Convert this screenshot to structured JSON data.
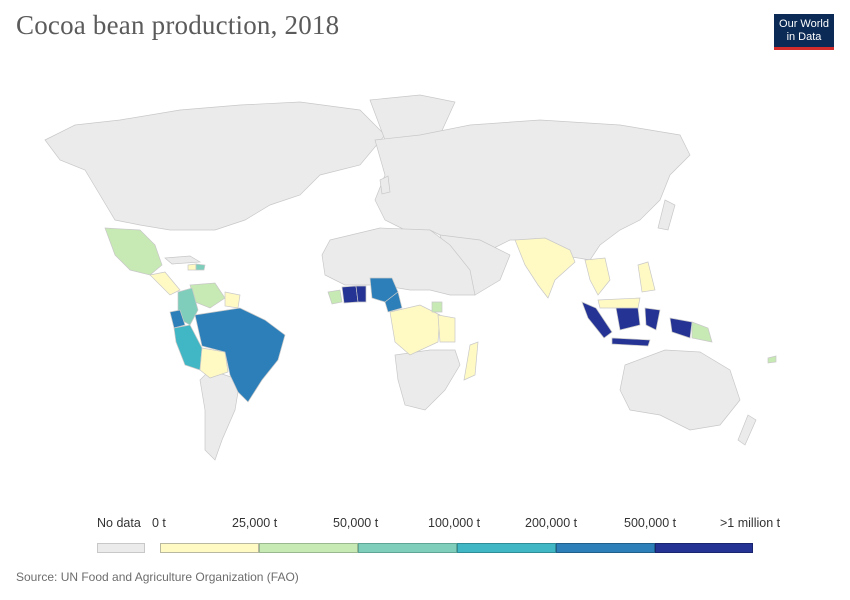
{
  "title": "Cocoa bean production, 2018",
  "logo": {
    "line1": "Our World",
    "line2": "in Data"
  },
  "source": "Source: UN Food and Agriculture Organization (FAO)",
  "colors": {
    "no_data": "#ebebeb",
    "land_stroke": "#c8c8c8",
    "bins": [
      "#fff9c4",
      "#c7e9b4",
      "#7fcdbb",
      "#41b6c4",
      "#2c7fb8",
      "#253494"
    ]
  },
  "legend": {
    "no_data_label": "No data",
    "ticks": [
      "0 t",
      "25,000 t",
      "50,000 t",
      "100,000 t",
      "200,000 t",
      "500,000 t",
      ">1 million t"
    ]
  },
  "map_data": {
    "unit": "tonnes",
    "countries": [
      {
        "name": "Côte d'Ivoire",
        "bin": 6
      },
      {
        "name": "Ghana",
        "bin": 6
      },
      {
        "name": "Indonesia",
        "bin": 6
      },
      {
        "name": "Nigeria",
        "bin": 5
      },
      {
        "name": "Cameroon",
        "bin": 5
      },
      {
        "name": "Brazil",
        "bin": 5
      },
      {
        "name": "Ecuador",
        "bin": 5
      },
      {
        "name": "Peru",
        "bin": 4
      },
      {
        "name": "Colombia",
        "bin": 3
      },
      {
        "name": "Dominican Republic",
        "bin": 3
      },
      {
        "name": "Papua New Guinea",
        "bin": 2
      },
      {
        "name": "Mexico",
        "bin": 2
      },
      {
        "name": "Venezuela",
        "bin": 2
      },
      {
        "name": "Uganda",
        "bin": 2
      },
      {
        "name": "Sierra Leone",
        "bin": 2
      },
      {
        "name": "India",
        "bin": 1
      },
      {
        "name": "Bolivia",
        "bin": 1
      },
      {
        "name": "Madagascar",
        "bin": 1
      },
      {
        "name": "Tanzania",
        "bin": 1
      },
      {
        "name": "DR Congo",
        "bin": 1
      },
      {
        "name": "Philippines",
        "bin": 1
      },
      {
        "name": "Malaysia",
        "bin": 1
      },
      {
        "name": "Vietnam",
        "bin": 1
      },
      {
        "name": "Guatemala",
        "bin": 1
      },
      {
        "name": "Haiti",
        "bin": 1
      }
    ]
  }
}
